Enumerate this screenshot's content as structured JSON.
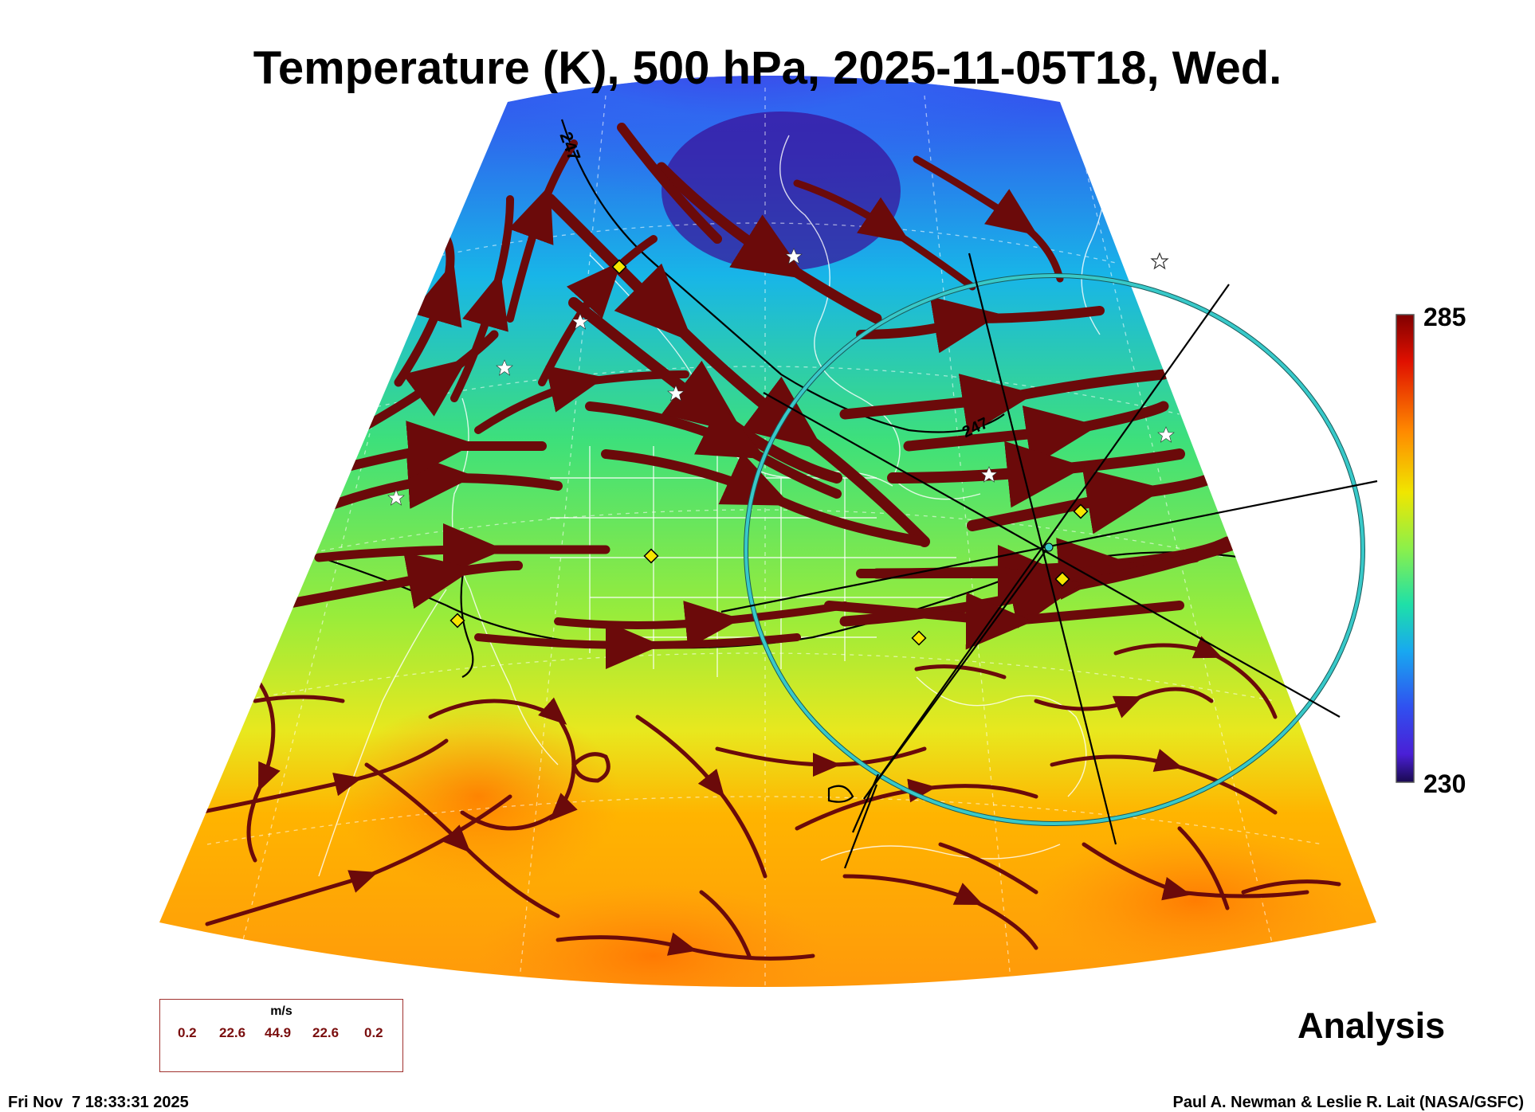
{
  "title": "Temperature (K), 500 hPa, 2025-11-05T18, Wed.",
  "colorbar": {
    "max_label": "285",
    "min_label": "230",
    "stops": [
      "#800000",
      "#ff2000",
      "#ff9a00",
      "#f5e600",
      "#9ff03a",
      "#2ee08a",
      "#18b5e8",
      "#2f5cf0",
      "#4a1fd6",
      "#2a0a6a"
    ]
  },
  "map": {
    "contour_labels": [
      "247",
      "247"
    ],
    "streamline_color": "#6b0a0a",
    "circle_color": "#38c9c9"
  },
  "legend": {
    "unit": "m/s",
    "values": [
      "0.2",
      "22.6",
      "44.9",
      "22.6",
      "0.2"
    ]
  },
  "analysis_label": "Analysis",
  "timestamp": "Fri Nov  7 18:33:31 2025",
  "credit": "Paul A. Newman & Leslie R. Lait (NASA/GSFC)"
}
